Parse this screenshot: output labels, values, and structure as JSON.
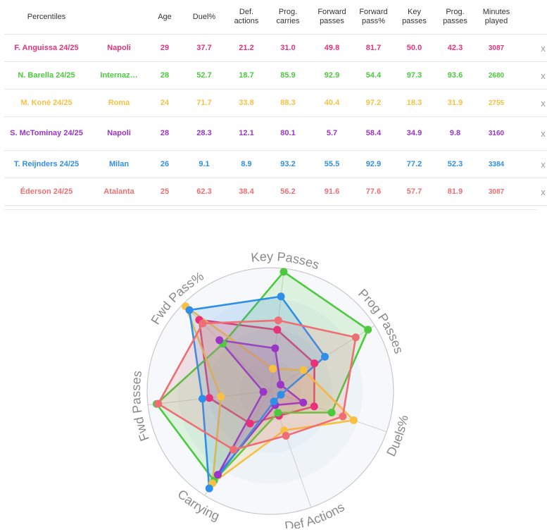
{
  "table": {
    "headers": [
      "Percentiles",
      "Age",
      "Duel%",
      "Def. actions",
      "Prog. carries",
      "Forward passes",
      "Forward pass%",
      "Key passes",
      "Prog. passes",
      "Minutes played"
    ],
    "remove_label": "x",
    "rows": [
      {
        "player": "F. Anguissa 24/25",
        "team": "Napoli",
        "age": "29",
        "duel": "37.7",
        "def": "21.2",
        "prog_carries": "31.0",
        "fwd_passes": "49.8",
        "fwd_pass_pct": "81.7",
        "key_passes": "50.0",
        "prog_passes": "42.3",
        "minutes": "3087",
        "color": "#e8317a"
      },
      {
        "player": "N. Barella 24/25",
        "team": "Internaz…",
        "age": "28",
        "duel": "52.7",
        "def": "18.7",
        "prog_carries": "85.9",
        "fwd_passes": "92.9",
        "fwd_pass_pct": "54.4",
        "key_passes": "97.3",
        "prog_passes": "93.6",
        "minutes": "2680",
        "color": "#4cc93e"
      },
      {
        "player": "M. Koné 24/25",
        "team": "Roma",
        "age": "24",
        "duel": "71.7",
        "def": "33.8",
        "prog_carries": "88.3",
        "fwd_passes": "40.4",
        "fwd_pass_pct": "97.2",
        "key_passes": "18.3",
        "prog_passes": "31.9",
        "minutes": "2755",
        "color": "#f7c042"
      },
      {
        "player": "S. McTominay 24/25",
        "team": "Napoli",
        "age": "28",
        "duel": "28.3",
        "def": "12.1",
        "prog_carries": "80.1",
        "fwd_passes": "5.7",
        "fwd_pass_pct": "58.4",
        "key_passes": "34.9",
        "prog_passes": "9.8",
        "minutes": "3160",
        "color": "#9a35c8"
      },
      {
        "player": "T. Reijnders 24/25",
        "team": "Milan",
        "age": "26",
        "duel": "9.1",
        "def": "8.9",
        "prog_carries": "93.2",
        "fwd_passes": "55.5",
        "fwd_pass_pct": "92.9",
        "key_passes": "77.2",
        "prog_passes": "52.3",
        "minutes": "3384",
        "color": "#2f8fe8"
      },
      {
        "player": "Éderson 24/25",
        "team": "Atalanta",
        "age": "25",
        "duel": "62.3",
        "def": "38.4",
        "prog_carries": "56.2",
        "fwd_passes": "91.6",
        "fwd_pass_pct": "77.6",
        "key_passes": "57.7",
        "prog_passes": "81.9",
        "minutes": "3087",
        "color": "#ee6e73"
      }
    ]
  },
  "chart_data": {
    "type": "radar",
    "axes": [
      "Key Passes",
      "Prog Passes",
      "Duels%",
      "Def Actions",
      "Carrying",
      "Fwd Passes",
      "Fwd Pass%"
    ],
    "range": [
      0,
      100
    ],
    "series": [
      {
        "name": "F. Anguissa 24/25",
        "color": "#e8317a",
        "values": [
          50.0,
          42.3,
          37.7,
          21.2,
          31.0,
          49.8,
          81.7
        ]
      },
      {
        "name": "N. Barella 24/25",
        "color": "#4cc93e",
        "values": [
          97.3,
          93.6,
          52.7,
          18.7,
          85.9,
          92.9,
          54.4
        ]
      },
      {
        "name": "M. Koné 24/25",
        "color": "#f7c042",
        "values": [
          18.3,
          31.9,
          71.7,
          33.8,
          88.3,
          40.4,
          97.2
        ]
      },
      {
        "name": "S. McTominay 24/25",
        "color": "#9a35c8",
        "values": [
          34.9,
          9.8,
          28.3,
          12.1,
          80.1,
          5.7,
          58.4
        ]
      },
      {
        "name": "T. Reijnders 24/25",
        "color": "#2f8fe8",
        "values": [
          77.2,
          52.3,
          9.1,
          8.9,
          93.2,
          55.5,
          92.9
        ]
      },
      {
        "name": "Éderson 24/25",
        "color": "#ee6e73",
        "values": [
          57.7,
          81.9,
          62.3,
          38.4,
          56.2,
          91.6,
          77.6
        ]
      }
    ]
  }
}
